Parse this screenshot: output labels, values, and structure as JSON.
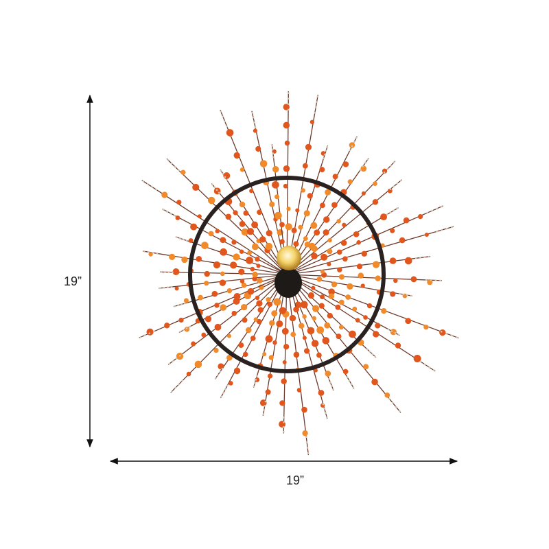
{
  "dimensions": {
    "height": "19”",
    "width": "19”"
  }
}
